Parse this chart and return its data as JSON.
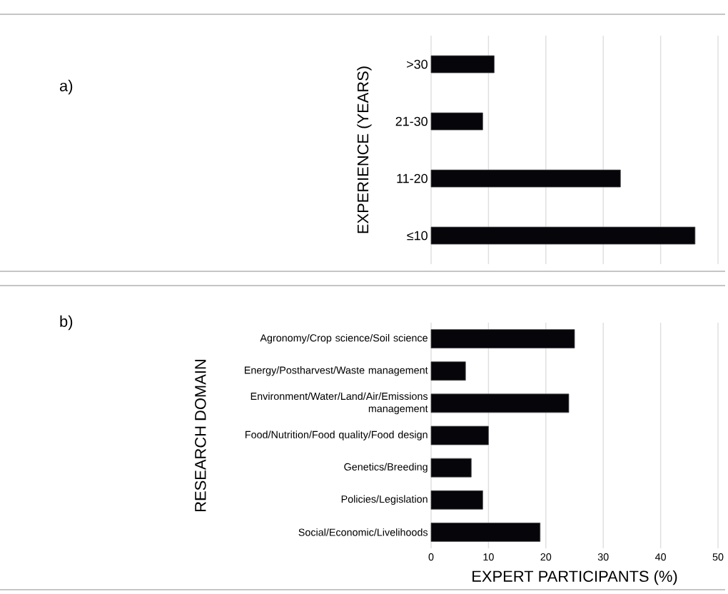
{
  "chart_data": [
    {
      "type": "bar",
      "orientation": "horizontal",
      "annotations": [
        "a)"
      ],
      "ylabel": "EXPERIENCE (YEARS)",
      "categories": [
        ">30",
        "21-30",
        "11-20",
        "≤10"
      ],
      "values": [
        11,
        9,
        33,
        46
      ],
      "color": "#05050a",
      "xlim": [
        0,
        50
      ],
      "xticks": [
        0,
        10,
        20,
        30,
        40,
        50
      ],
      "grid": "x",
      "tick_labels": "y"
    },
    {
      "type": "bar",
      "orientation": "horizontal",
      "annotations": [
        "b)"
      ],
      "ylabel": "RESEARCH DOMAIN",
      "xlabel": "EXPERT PARTICIPANTS (%)",
      "categories": [
        "Agronomy/Crop science/Soil science",
        "Energy/Postharvest/Waste management",
        "Environment/Water/Land/Air/Emissions management",
        "Food/Nutrition/Food quality/Food design",
        "Genetics/Breeding",
        "Policies/Legislation",
        "Social/Economic/Livelihoods"
      ],
      "values": [
        25,
        6,
        24,
        10,
        7,
        9,
        19
      ],
      "color": "#05050a",
      "xlim": [
        0,
        50
      ],
      "xticks": [
        0,
        10,
        20,
        30,
        40,
        50
      ],
      "grid": "x"
    }
  ]
}
